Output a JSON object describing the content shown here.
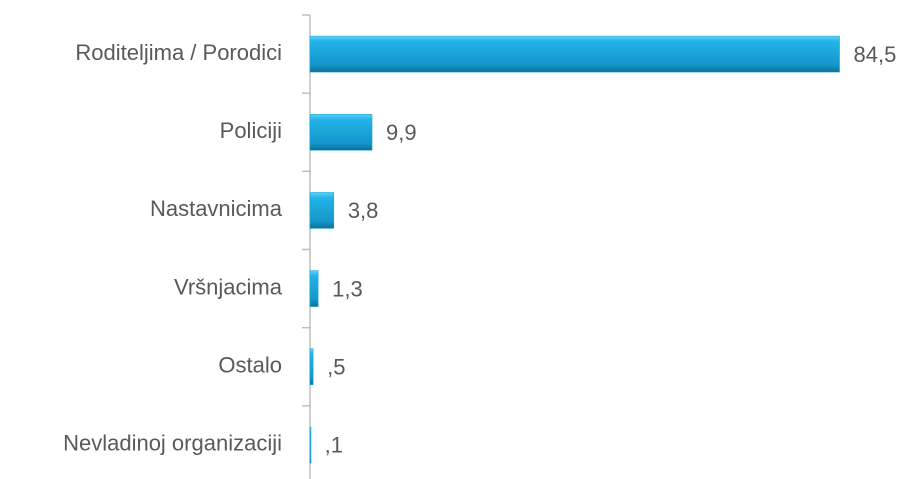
{
  "chart_data": {
    "type": "bar",
    "orientation": "horizontal",
    "categories": [
      "Roditeljima / Porodici",
      "Policiji",
      "Nastavnicima",
      "Vršnjacima",
      "Ostalo",
      "Nevladinoj organizaciji"
    ],
    "values": [
      84.5,
      9.9,
      3.8,
      1.3,
      0.5,
      0.1
    ],
    "value_labels": [
      "84,5",
      "9,9",
      "3,8",
      "1,3",
      ",5",
      ",1"
    ],
    "color": "#1aa3d6",
    "xlim": [
      0,
      90
    ]
  }
}
